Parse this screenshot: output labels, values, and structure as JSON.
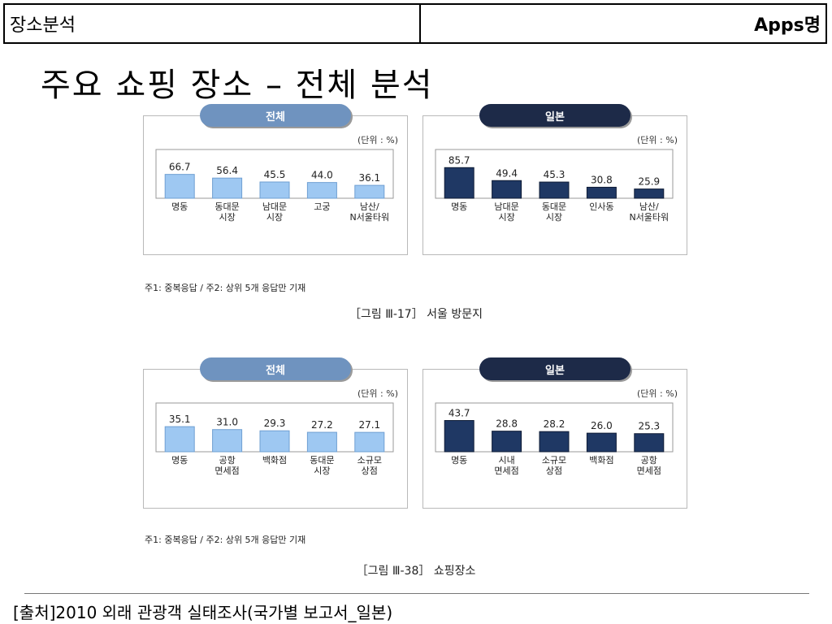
{
  "header": {
    "left_label": "장소분석",
    "right_label": "Apps명"
  },
  "title": "주요 쇼핑 장소 – 전체 분석",
  "figures": [
    {
      "note": "주1: 중복응답 / 주2: 상위 5개 응답만 기재",
      "caption": "［그림 Ⅲ-17］ 서울 방문지",
      "panels": [
        {
          "label": "전체",
          "unit": "(단위 : %)"
        },
        {
          "label": "일본",
          "unit": "(단위 : %)"
        }
      ]
    },
    {
      "note": "주1: 중복응답 / 주2: 상위 5개 응답만 기재",
      "caption": "［그림 Ⅲ-38］ 쇼핑장소",
      "panels": [
        {
          "label": "전체",
          "unit": "(단위 : %)"
        },
        {
          "label": "일본",
          "unit": "(단위 : %)"
        }
      ]
    }
  ],
  "chart_data": [
    {
      "type": "bar",
      "title": "전체",
      "categories": [
        "명동",
        "동대문 시장",
        "남대문 시장",
        "고궁",
        "남산/ N서울타워"
      ],
      "values": [
        66.7,
        56.4,
        45.5,
        44.0,
        36.1
      ],
      "value_labels": [
        "66.7",
        "56.4",
        "45.5",
        "44.0",
        "36.1"
      ],
      "ylim": [
        0,
        100
      ],
      "color": "#9ec8f2",
      "grid": false
    },
    {
      "type": "bar",
      "title": "일본",
      "categories": [
        "명동",
        "남대문 시장",
        "동대문 시장",
        "인사동",
        "남산/ N서울타워"
      ],
      "values": [
        85.7,
        49.4,
        45.3,
        30.8,
        25.9
      ],
      "value_labels": [
        "85.7",
        "49.4",
        "45.3",
        "30.8",
        "25.9"
      ],
      "ylim": [
        0,
        100
      ],
      "color": "#1f3864",
      "grid": false
    },
    {
      "type": "bar",
      "title": "전체",
      "categories": [
        "명동",
        "공항 면세점",
        "백화점",
        "동대문 시장",
        "소규모 상점"
      ],
      "values": [
        35.1,
        31.0,
        29.3,
        27.2,
        27.1
      ],
      "value_labels": [
        "35.1",
        "31.0",
        "29.3",
        "27.2",
        "27.1"
      ],
      "ylim": [
        0,
        50
      ],
      "color": "#9ec8f2",
      "grid": false
    },
    {
      "type": "bar",
      "title": "일본",
      "categories": [
        "명동",
        "시내 면세점",
        "소규모 상점",
        "백화점",
        "공항 면세점"
      ],
      "values": [
        43.7,
        28.8,
        28.2,
        26.0,
        25.3
      ],
      "value_labels": [
        "43.7",
        "28.8",
        "28.2",
        "26.0",
        "25.3"
      ],
      "ylim": [
        0,
        50
      ],
      "color": "#1f3864",
      "grid": false
    }
  ],
  "footer": {
    "source": "[출처]2010 외래 관광객 실태조사(국가별 보고서_일본)"
  }
}
